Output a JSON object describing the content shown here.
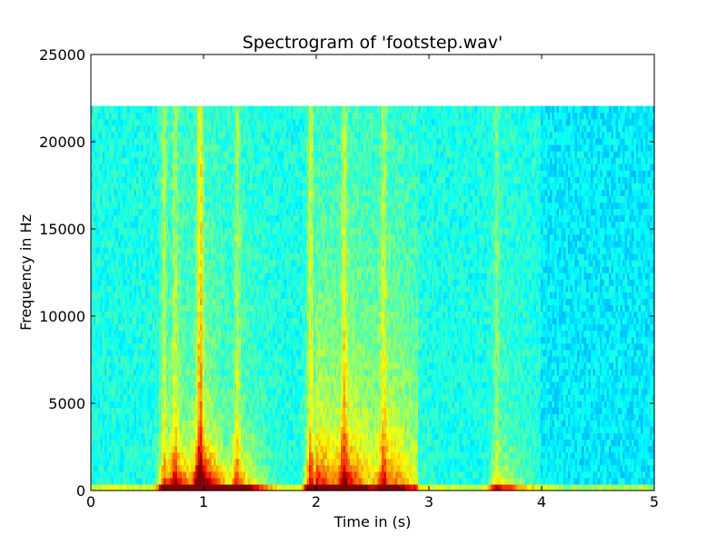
{
  "chart_data": {
    "type": "heatmap",
    "title": "Spectrogram of 'footstep.wav'",
    "xlabel": "Time in (s)",
    "ylabel": "Frequency in Hz",
    "xlim": [
      0,
      5
    ],
    "ylim": [
      0,
      25000
    ],
    "x_ticks": [
      0,
      1,
      2,
      3,
      4,
      5
    ],
    "y_ticks": [
      0,
      5000,
      10000,
      15000,
      20000,
      25000
    ],
    "data_max_frequency_hz": 22050,
    "colormap": "jet",
    "grid": false,
    "legend": "none",
    "energy_events": [
      {
        "time_s": 0.65,
        "intensity": 0.55
      },
      {
        "time_s": 0.75,
        "intensity": 0.45
      },
      {
        "time_s": 0.97,
        "intensity": 0.95
      },
      {
        "time_s": 1.3,
        "intensity": 0.5
      },
      {
        "time_s": 1.95,
        "intensity": 0.7
      },
      {
        "time_s": 2.25,
        "intensity": 0.55
      },
      {
        "time_s": 2.6,
        "intensity": 0.45
      },
      {
        "time_s": 3.6,
        "intensity": 0.35
      }
    ]
  }
}
